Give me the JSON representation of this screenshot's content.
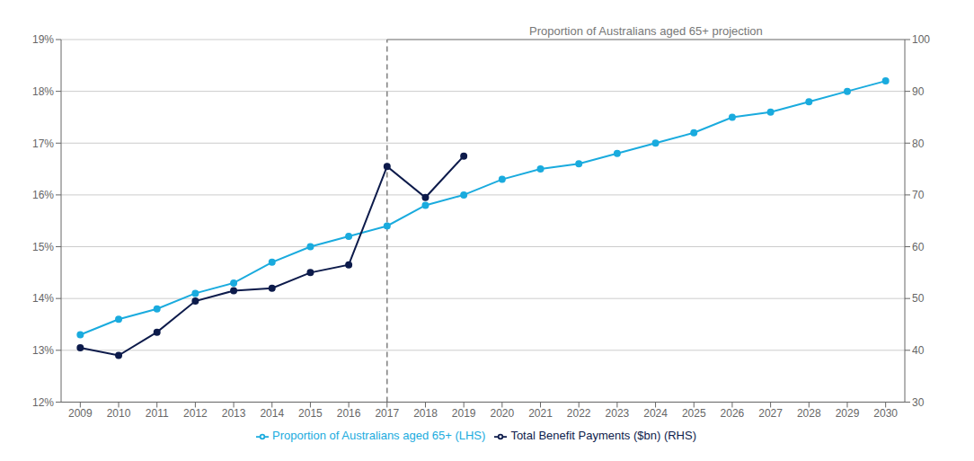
{
  "chart_data": {
    "type": "line",
    "x": [
      2009,
      2010,
      2011,
      2012,
      2013,
      2014,
      2015,
      2016,
      2017,
      2018,
      2019,
      2020,
      2021,
      2022,
      2023,
      2024,
      2025,
      2026,
      2027,
      2028,
      2029,
      2030
    ],
    "series": [
      {
        "name": "Proportion of Australians aged 65+ (LHS)",
        "color": "#1AABDE",
        "marker": "o",
        "values": [
          0.133,
          0.136,
          0.138,
          0.141,
          0.143,
          0.147,
          0.15,
          0.152,
          0.154,
          0.158,
          0.16,
          0.163,
          0.165,
          0.166,
          0.168,
          0.17,
          0.172,
          0.175,
          0.176,
          0.178,
          0.18,
          0.182
        ]
      },
      {
        "name": "Total Benefit Payments ($bn) (RHS)",
        "color": "#0D1B4B",
        "marker": "o",
        "axis": "y2",
        "values": [
          40.5,
          39.0,
          43.5,
          49.5,
          51.5,
          52.0,
          55.0,
          56.5,
          75.5,
          69.5,
          77.5,
          null,
          null,
          null,
          null,
          null,
          null,
          null,
          null,
          null,
          null,
          null
        ]
      }
    ],
    "xlim": [
      2008.5,
      2030.5
    ],
    "xticks": [
      2009,
      2010,
      2011,
      2012,
      2013,
      2014,
      2015,
      2016,
      2017,
      2018,
      2019,
      2020,
      2021,
      2022,
      2023,
      2024,
      2025,
      2026,
      2027,
      2028,
      2029,
      2030
    ],
    "ylim": [
      0.12,
      0.19
    ],
    "yticks": [
      {
        "value": 0.12,
        "label": "12%"
      },
      {
        "value": 0.13,
        "label": "13%"
      },
      {
        "value": 0.14,
        "label": "14%"
      },
      {
        "value": 0.15,
        "label": "15%"
      },
      {
        "value": 0.16,
        "label": "16%"
      },
      {
        "value": 0.17,
        "label": "17%"
      },
      {
        "value": 0.18,
        "label": "18%"
      },
      {
        "value": 0.19,
        "label": "19%"
      }
    ],
    "y2lim": [
      30,
      100
    ],
    "y2ticks": [
      30,
      40,
      50,
      60,
      70,
      80,
      90,
      100
    ],
    "grid": true,
    "legend": "bottom",
    "annotations": [
      {
        "type": "vline",
        "x": 2017,
        "line_style": "dashed",
        "color": "#808080"
      },
      {
        "type": "bracket",
        "text": "Proportion of Australians aged 65+ projection",
        "x": 2017,
        "color": "#808080"
      }
    ]
  }
}
